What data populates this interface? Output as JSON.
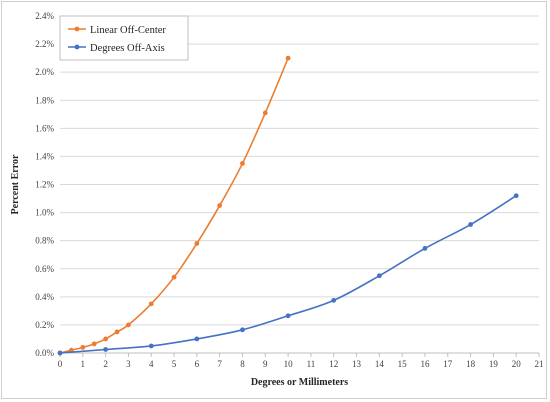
{
  "chart_data": {
    "type": "line",
    "xlabel": "Degrees or Millimeters",
    "ylabel": "Percent Error",
    "xlim": [
      0,
      21
    ],
    "ylim": [
      0,
      2.4
    ],
    "x_ticks": [
      0,
      1,
      2,
      3,
      4,
      5,
      6,
      7,
      8,
      9,
      10,
      11,
      12,
      13,
      14,
      15,
      16,
      17,
      18,
      19,
      20,
      21
    ],
    "y_ticks": [
      0,
      0.2,
      0.4,
      0.6,
      0.8,
      1.0,
      1.2,
      1.4,
      1.6,
      1.8,
      2.0,
      2.2,
      2.4
    ],
    "y_tick_labels": [
      "0.0%",
      "0.2%",
      "0.4%",
      "0.6%",
      "0.8%",
      "1.0%",
      "1.2%",
      "1.4%",
      "1.6%",
      "1.8%",
      "2.0%",
      "2.2%",
      "2.4%"
    ],
    "grid": "horizontal",
    "legend_position": "top-left",
    "series": [
      {
        "name": "Linear Off-Center",
        "color": "#ED7D31",
        "x": [
          0,
          0.5,
          1,
          1.5,
          2,
          2.5,
          3,
          4,
          5,
          6,
          7,
          8,
          9,
          10
        ],
        "y": [
          0,
          0.02,
          0.04,
          0.065,
          0.1,
          0.15,
          0.2,
          0.35,
          0.54,
          0.78,
          1.05,
          1.35,
          1.71,
          2.1
        ]
      },
      {
        "name": "Degrees Off-Axis",
        "color": "#4472C4",
        "x": [
          0,
          2,
          4,
          6,
          8,
          10,
          12,
          14,
          16,
          18,
          20
        ],
        "y": [
          0,
          0.025,
          0.05,
          0.1,
          0.165,
          0.265,
          0.375,
          0.55,
          0.745,
          0.915,
          1.12
        ]
      }
    ]
  }
}
